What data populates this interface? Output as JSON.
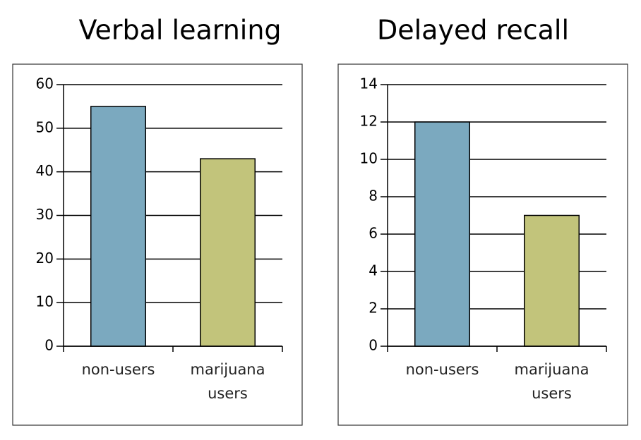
{
  "chart_data": [
    {
      "type": "bar",
      "title": "Verbal learning",
      "categories": [
        "non-users",
        "marijuana users"
      ],
      "values": [
        55,
        43
      ],
      "colors": [
        "#7ba9bf",
        "#c2c47b"
      ],
      "ylim": [
        0,
        60
      ],
      "yticks": [
        0,
        10,
        20,
        30,
        40,
        50,
        60
      ],
      "grid": true
    },
    {
      "type": "bar",
      "title": "Delayed recall",
      "categories": [
        "non-users",
        "marijuana users"
      ],
      "values": [
        12,
        7
      ],
      "colors": [
        "#7ba9bf",
        "#c2c47b"
      ],
      "ylim": [
        0,
        14
      ],
      "yticks": [
        0,
        2,
        4,
        6,
        8,
        10,
        12,
        14
      ],
      "grid": true
    }
  ]
}
